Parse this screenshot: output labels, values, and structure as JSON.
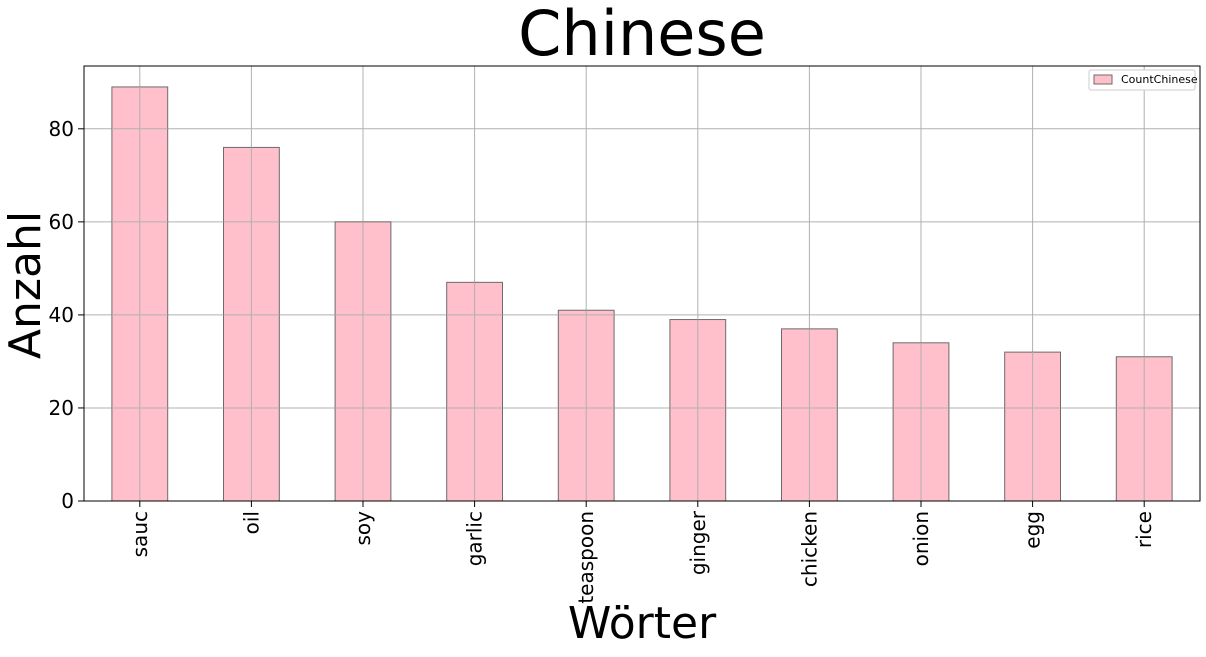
{
  "chart_data": {
    "type": "bar",
    "title": "Chinese",
    "xlabel": "Wörter",
    "ylabel": "Anzahl",
    "categories": [
      "sauc",
      "oil",
      "soy",
      "garlic",
      "teaspoon",
      "ginger",
      "chicken",
      "onion",
      "egg",
      "rice"
    ],
    "series": [
      {
        "name": "CountChinese",
        "values": [
          89,
          76,
          60,
          47,
          41,
          39,
          37,
          34,
          32,
          31
        ]
      }
    ],
    "ylim": [
      0,
      93.5
    ],
    "yticks": [
      0,
      20,
      40,
      60,
      80
    ],
    "grid": true,
    "legend_position": "top-right",
    "colors": {
      "bar_fill": "#ffc0cb",
      "bar_edge": "#6b6b6b",
      "grid": "#b0b0b0",
      "axis": "#000000"
    }
  }
}
